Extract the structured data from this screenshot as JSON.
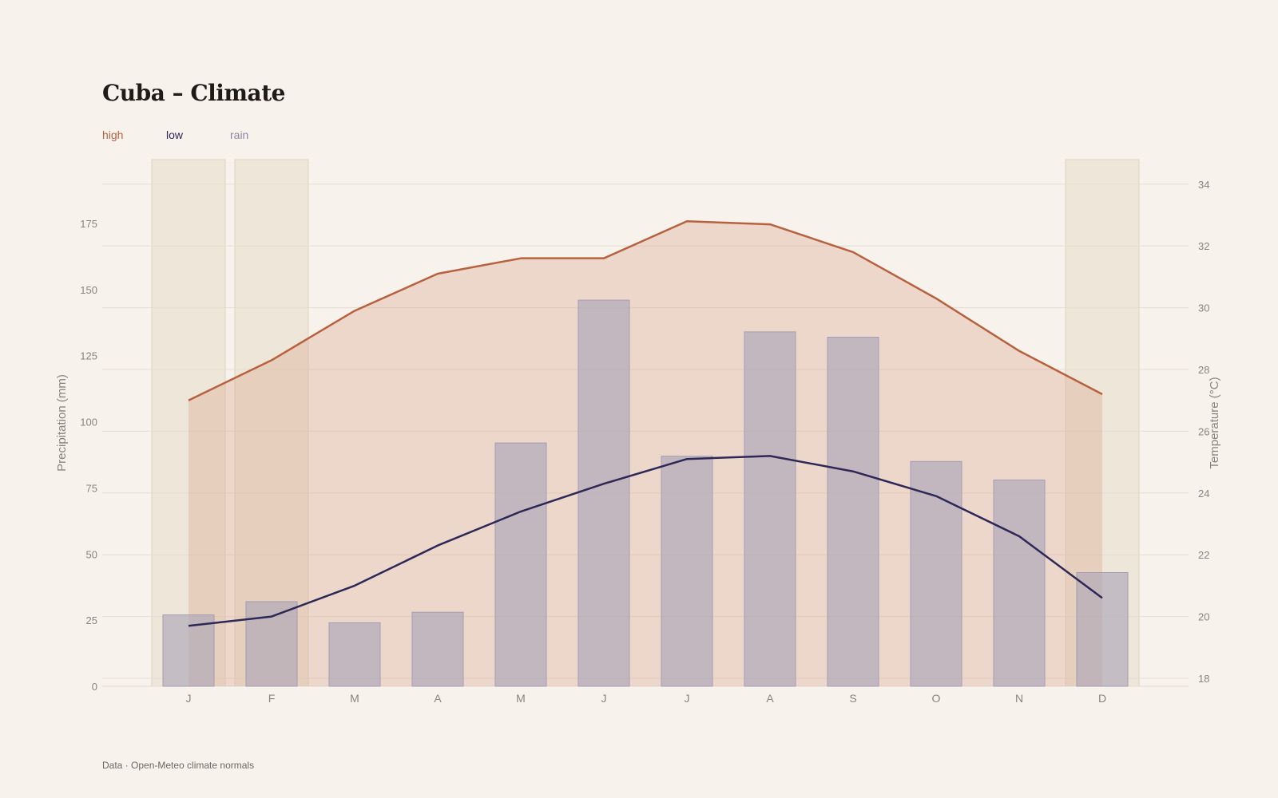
{
  "title": "Cuba – Climate",
  "legend": {
    "high": "high",
    "low": "low",
    "rain": "rain"
  },
  "source": "Data · Open-Meteo climate normals",
  "colors": {
    "high": "#b8613f",
    "low": "#2c2857",
    "rain": "#a9a5b8",
    "highlight": "#e8dcc8"
  },
  "chart_data": {
    "type": "bar",
    "categories": [
      "J",
      "F",
      "M",
      "A",
      "M",
      "J",
      "J",
      "A",
      "S",
      "O",
      "N",
      "D"
    ],
    "highlighted_months": [
      0,
      1,
      11
    ],
    "series": [
      {
        "name": "rain",
        "type": "bar",
        "axis": "left",
        "values": [
          27,
          32,
          24,
          28,
          92,
          146,
          87,
          134,
          132,
          85,
          78,
          43
        ]
      },
      {
        "name": "high",
        "type": "line",
        "axis": "right",
        "values": [
          27.0,
          28.3,
          29.9,
          31.1,
          31.6,
          31.6,
          32.8,
          32.7,
          31.8,
          30.3,
          28.6,
          27.2
        ]
      },
      {
        "name": "low",
        "type": "line",
        "axis": "right",
        "values": [
          19.7,
          20.0,
          21.0,
          22.3,
          23.4,
          24.3,
          25.1,
          25.2,
          24.7,
          23.9,
          22.6,
          20.6
        ]
      }
    ],
    "ylabel": "Precipitation (mm)",
    "y2label": "Temperature (°C)",
    "ylim": [
      0,
      175
    ],
    "y2lim": [
      18,
      34
    ],
    "yticks": [
      "0",
      "25",
      "50",
      "75",
      "100",
      "125",
      "150",
      "175"
    ],
    "y2ticks": [
      "18",
      "20",
      "22",
      "24",
      "26",
      "28",
      "30",
      "32",
      "34"
    ]
  }
}
